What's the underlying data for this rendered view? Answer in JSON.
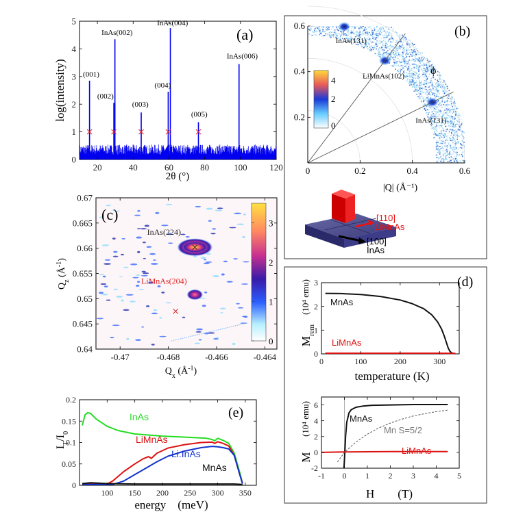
{
  "chart_data": [
    {
      "id": "a",
      "type": "line",
      "panel_label": "(a)",
      "xlabel": "2θ (°)",
      "ylabel": "log(intensity)",
      "xlim": [
        10,
        120
      ],
      "ylim": [
        0,
        5
      ],
      "xticks": [
        "20",
        "40",
        "60",
        "80",
        "100",
        "120"
      ],
      "yticks": [
        "0",
        "1",
        "2",
        "3",
        "4",
        "5"
      ],
      "baseline_level": 0.4,
      "color": "#0000ee",
      "peaks": [
        {
          "x": 15.6,
          "y": 2.85
        },
        {
          "x": 29.2,
          "y": 2.05
        },
        {
          "x": 29.8,
          "y": 4.35
        },
        {
          "x": 44.5,
          "y": 1.7
        },
        {
          "x": 59.6,
          "y": 2.45
        },
        {
          "x": 60.8,
          "y": 4.75
        },
        {
          "x": 76.5,
          "y": 1.35
        },
        {
          "x": 99.2,
          "y": 3.45
        }
      ],
      "markers": {
        "x": [
          15.6,
          29.2,
          44.5,
          59.6,
          76.5
        ],
        "y": 1.0,
        "color": "#ee2222"
      },
      "annotations": [
        {
          "text": "(001)",
          "x": 16.5,
          "y": 3.0
        },
        {
          "text": "(002)",
          "x": 24.5,
          "y": 2.2
        },
        {
          "text": "InAs(002)",
          "x": 31.0,
          "y": 4.5
        },
        {
          "text": "(003)",
          "x": 44.0,
          "y": 1.9
        },
        {
          "text": "InAs(004)",
          "x": 62.0,
          "y": 4.85
        },
        {
          "text": "(004)",
          "x": 56.5,
          "y": 2.6
        },
        {
          "text": "(005)",
          "x": 77.0,
          "y": 1.55
        },
        {
          "text": "InAs(006)",
          "x": 101.0,
          "y": 3.65
        }
      ]
    },
    {
      "id": "b",
      "type": "scatter",
      "panel_label": "(b)",
      "xlabel": "|Q| (Å⁻¹)",
      "xlim": [
        0,
        0.6
      ],
      "ylim": [
        0,
        0.6
      ],
      "xticks": [
        "0",
        "0.2",
        "0.4",
        "0.6"
      ],
      "yticks": [
        "0.2",
        "0.4",
        "0.6"
      ],
      "radial_band": [
        0.49,
        0.61
      ],
      "radial_lines_deg": [
        26,
        53
      ],
      "phi_label": "ϕ",
      "colorbar": {
        "min": 0,
        "max": 4,
        "ticks": [
          "0",
          "2",
          "4"
        ]
      },
      "spots": [
        {
          "label": "InAs(131)",
          "angle_deg": 75,
          "r": 0.54
        },
        {
          "label": "LiMnAs(102)",
          "angle_deg": 53,
          "r": 0.49
        },
        {
          "label": "InAs(131)",
          "angle_deg": 26,
          "r": 0.53
        }
      ],
      "inset": {
        "label_110": "[110]",
        "label_110b": "LiMnAs",
        "label_100": "[100]",
        "label_100b": "InAs"
      }
    },
    {
      "id": "c",
      "type": "heatmap",
      "panel_label": "(c)",
      "xlabel": "Qx (Å⁻¹)",
      "ylabel": "Qz (Å⁻¹)",
      "xlim": [
        -0.471,
        -0.4635
      ],
      "ylim": [
        0.64,
        0.67
      ],
      "xticks": [
        "-0.47",
        "-0.468",
        "-0.466",
        "-0.464"
      ],
      "yticks": [
        "0.64",
        "0.645",
        "0.65",
        "0.655",
        "0.66",
        "0.665",
        "0.67"
      ],
      "colorbar": {
        "min": 0,
        "max": 3.5,
        "ticks": [
          "0",
          "1",
          "2",
          "3"
        ]
      },
      "peaks": [
        {
          "label": "InAs(224)",
          "x": -0.4669,
          "y": 0.6602,
          "value": 3.3,
          "label_color": "#222222"
        },
        {
          "label": "LiMnAs(204)",
          "x": -0.4669,
          "y": 0.6508,
          "value": 2.2,
          "label_color": "#dd2222"
        }
      ],
      "markers": [
        {
          "x": -0.4669,
          "y": 0.6602,
          "color": "#222222"
        },
        {
          "x": -0.4677,
          "y": 0.6475,
          "color": "#dd2222"
        }
      ]
    },
    {
      "id": "d1",
      "type": "line",
      "panel_label": "(d)",
      "xlabel": "temperature  (K)",
      "ylabel_main": "M",
      "ylabel_sub": "rem",
      "ylabel_unit": "(10⁴ emu)",
      "xlim": [
        0,
        350
      ],
      "ylim": [
        0,
        3
      ],
      "xticks": [
        "0",
        "100",
        "200",
        "300"
      ],
      "yticks": [
        "0",
        "1",
        "2",
        "3"
      ],
      "series": [
        {
          "name": "MnAs",
          "color": "#111111",
          "x": [
            10,
            50,
            100,
            150,
            200,
            230,
            260,
            280,
            295,
            305,
            312,
            318,
            322,
            326,
            330,
            335,
            340
          ],
          "y": [
            2.55,
            2.54,
            2.5,
            2.42,
            2.27,
            2.12,
            1.9,
            1.65,
            1.35,
            1.05,
            0.75,
            0.45,
            0.25,
            0.12,
            0.05,
            0.02,
            0.01
          ]
        },
        {
          "name": "LiMnAs",
          "color": "#dd1111",
          "x": [
            10,
            100,
            200,
            300,
            340
          ],
          "y": [
            0.03,
            0.03,
            0.03,
            0.03,
            0.02
          ]
        }
      ]
    },
    {
      "id": "d2",
      "type": "line",
      "xlabel": "H        (T)",
      "ylabel_main": "M",
      "ylabel_unit": "(10⁴ emu)",
      "xlim": [
        -1,
        5
      ],
      "ylim": [
        -2,
        7
      ],
      "xticks": [
        "-1",
        "0",
        "1",
        "2",
        "3",
        "4",
        "5"
      ],
      "yticks": [
        "-2",
        "0",
        "2",
        "4",
        "6"
      ],
      "series": [
        {
          "name": "MnAs",
          "color": "#111111",
          "x": [
            -0.02,
            0.0,
            0.05,
            0.1,
            0.2,
            0.3,
            0.5,
            0.8,
            1.2,
            2.0,
            3.0,
            4.5
          ],
          "y": [
            -2,
            -1.0,
            2.0,
            3.8,
            5.0,
            5.4,
            5.7,
            5.85,
            5.95,
            6.0,
            6.05,
            6.05
          ]
        },
        {
          "name": "Mn S=5/2",
          "color": "#555555",
          "dashed": true,
          "x": [
            -0.3,
            0,
            0.5,
            1.0,
            1.5,
            2.0,
            2.5,
            3.0,
            3.5,
            4.0,
            4.5
          ],
          "y": [
            -1.2,
            0,
            1.3,
            2.3,
            3.1,
            3.7,
            4.2,
            4.6,
            4.9,
            5.15,
            5.35
          ]
        },
        {
          "name": "LiMnAs",
          "color": "#dd1111",
          "x": [
            -1,
            0,
            1,
            2,
            3,
            4,
            4.5
          ],
          "y": [
            0,
            0.05,
            0.08,
            0.1,
            0.1,
            0.1,
            0.1
          ]
        }
      ]
    },
    {
      "id": "e",
      "type": "line",
      "panel_label": "(e)",
      "xlabel": "energy    (meV)",
      "ylabel": "IT/I0",
      "xlim": [
        50,
        370
      ],
      "ylim": [
        0,
        0.2
      ],
      "xticks": [
        "100",
        "150",
        "200",
        "250",
        "300",
        "350"
      ],
      "yticks": [
        "0",
        "0.05",
        "0.1",
        "0.15",
        "0.2"
      ],
      "series": [
        {
          "name": "InAs",
          "color": "#22dd22",
          "x": [
            55,
            60,
            65,
            70,
            80,
            100,
            120,
            150,
            200,
            250,
            280,
            290,
            295,
            300,
            310,
            320,
            330,
            340,
            345
          ],
          "y": [
            0.14,
            0.165,
            0.17,
            0.168,
            0.155,
            0.138,
            0.128,
            0.12,
            0.115,
            0.112,
            0.11,
            0.107,
            0.104,
            0.11,
            0.105,
            0.098,
            0.075,
            0.03,
            0.005
          ]
        },
        {
          "name": "LiMnAs",
          "color": "#dd1111",
          "x": [
            55,
            100,
            110,
            130,
            150,
            165,
            175,
            180,
            190,
            210,
            240,
            270,
            290,
            295,
            300,
            310,
            320,
            330,
            340,
            345
          ],
          "y": [
            0.003,
            0.003,
            0.01,
            0.032,
            0.05,
            0.062,
            0.067,
            0.063,
            0.075,
            0.087,
            0.095,
            0.1,
            0.101,
            0.098,
            0.102,
            0.098,
            0.092,
            0.07,
            0.025,
            0.005
          ]
        },
        {
          "name": "Li:InAs",
          "color": "#1133cc",
          "x": [
            55,
            110,
            130,
            150,
            170,
            190,
            210,
            240,
            270,
            290,
            300,
            310,
            320,
            330,
            340,
            345
          ],
          "y": [
            0.002,
            0.002,
            0.01,
            0.025,
            0.04,
            0.055,
            0.068,
            0.08,
            0.088,
            0.091,
            0.09,
            0.088,
            0.085,
            0.07,
            0.025,
            0.004
          ]
        },
        {
          "name": "MnAs",
          "color": "#111111",
          "x": [
            55,
            70,
            100,
            150,
            200,
            250,
            300,
            330,
            345
          ],
          "y": [
            0.004,
            0.006,
            0.004,
            0.003,
            0.003,
            0.003,
            0.003,
            0.003,
            0.002
          ]
        }
      ]
    }
  ]
}
